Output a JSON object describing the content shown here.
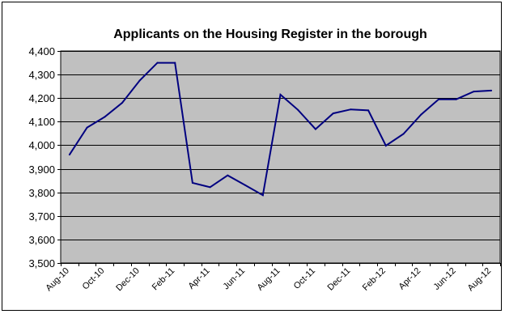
{
  "chart_data": {
    "type": "line",
    "title": "Applicants on the Housing Register in the borough",
    "xlabel": "",
    "ylabel": "",
    "ylim": [
      3500,
      4400
    ],
    "ytick_step": 100,
    "y_tick_labels": [
      "3,500",
      "3,600",
      "3,700",
      "3,800",
      "3,900",
      "4,000",
      "4,100",
      "4,200",
      "4,300",
      "4,400"
    ],
    "grid": true,
    "legend": "none",
    "x": [
      "Aug-10",
      "Sep-10",
      "Oct-10",
      "Nov-10",
      "Dec-10",
      "Jan-11",
      "Feb-11",
      "Mar-11",
      "Apr-11",
      "May-11",
      "Jun-11",
      "Jul-11",
      "Aug-11",
      "Sep-11",
      "Oct-11",
      "Nov-11",
      "Dec-11",
      "Jan-12",
      "Feb-12",
      "Mar-12",
      "Apr-12",
      "May-12",
      "Jun-12",
      "Jul-12",
      "Aug-12"
    ],
    "x_tick_labels_shown": [
      "Aug-10",
      "Oct-10",
      "Dec-10",
      "Feb-11",
      "Apr-11",
      "Jun-11",
      "Aug-11",
      "Oct-11",
      "Dec-11",
      "Feb-12",
      "Apr-12",
      "Jun-12",
      "Aug-12"
    ],
    "series": [
      {
        "values": [
          3960,
          4075,
          4120,
          4180,
          4275,
          4350,
          4350,
          3840,
          3822,
          3872,
          3830,
          3788,
          4215,
          4150,
          4068,
          4135,
          4152,
          4148,
          3998,
          4048,
          4130,
          4195,
          4195,
          4228,
          4232
        ]
      }
    ],
    "colors": {
      "plot_background": "#c0c0c0",
      "line": "#000080",
      "grid": "#000000"
    }
  }
}
